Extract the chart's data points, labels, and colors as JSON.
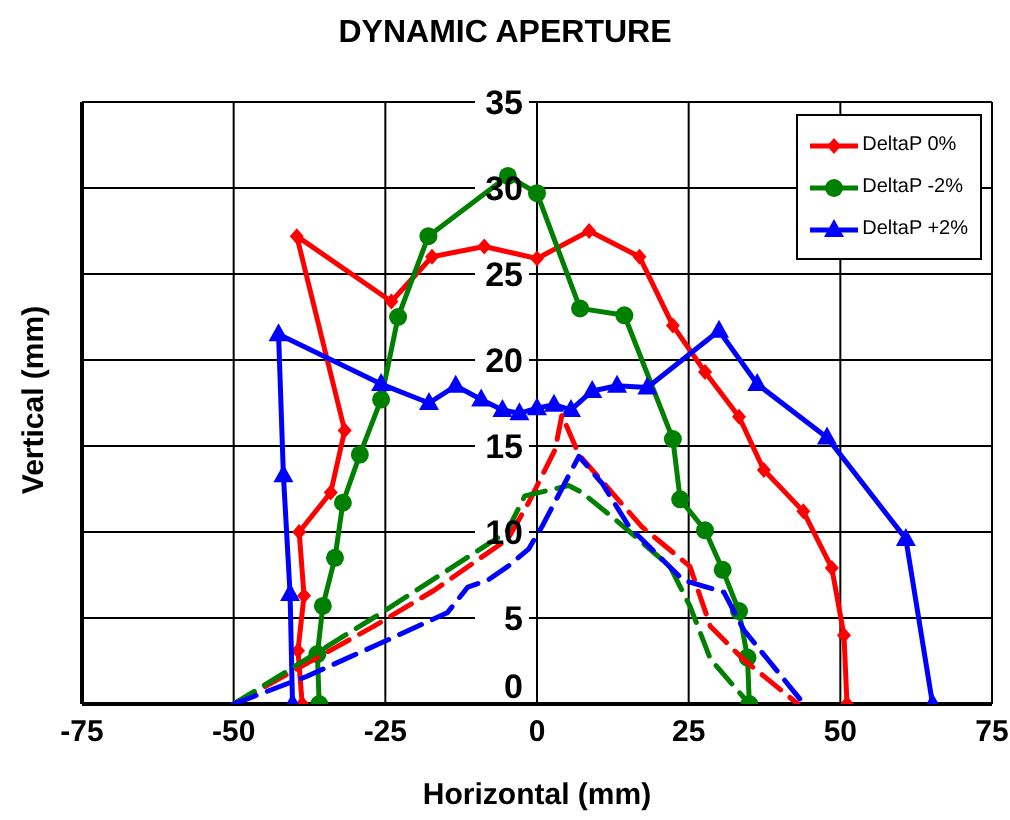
{
  "chart_data": {
    "type": "line",
    "title": "DYNAMIC APERTURE",
    "xlabel": "Horizontal (mm)",
    "ylabel": "Vertical (mm)",
    "xlim": [
      -75,
      75
    ],
    "xticks": [
      -75,
      -50,
      -25,
      0,
      25,
      50,
      75
    ],
    "ylim": [
      0,
      35
    ],
    "yticks": [
      0,
      5,
      10,
      15,
      20,
      25,
      30,
      35
    ],
    "grid": true,
    "legend": "top right",
    "series": [
      {
        "name": "DeltaP 0%",
        "color": "#ff0000",
        "marker": "diamond",
        "line_style": "solid",
        "x": [
          -38.7,
          -39.4,
          -38.4,
          -39.2,
          -34,
          -31.7,
          -39.6,
          -24,
          -17.3,
          -8.7,
          0,
          8.6,
          16.9,
          22.4,
          27.7,
          33.3,
          37.4,
          43.9,
          48.6,
          50.6,
          51.1
        ],
        "values": [
          0,
          3.1,
          6.3,
          10,
          12.3,
          15.9,
          27.2,
          23.4,
          26,
          26.6,
          25.9,
          27.5,
          26,
          22,
          19.3,
          16.7,
          13.6,
          11.2,
          7.9,
          4,
          0
        ]
      },
      {
        "name": "DeltaP -2%",
        "color": "#008000",
        "marker": "circle",
        "line_style": "solid",
        "x": [
          -35.9,
          -36.2,
          -35.3,
          -33.3,
          -32,
          -29.2,
          -25.7,
          -22.9,
          -17.9,
          -4.8,
          0,
          7.1,
          14.4,
          22.4,
          23.6,
          27.7,
          30.6,
          33.3,
          34.7,
          35
        ],
        "values": [
          0,
          2.9,
          5.7,
          8.5,
          11.7,
          14.5,
          17.7,
          22.5,
          27.2,
          30.7,
          29.7,
          23,
          22.6,
          15.4,
          11.9,
          10.1,
          7.8,
          5.4,
          2.7,
          0
        ]
      },
      {
        "name": "DeltaP +2%",
        "color": "#0000ff",
        "marker": "triangle",
        "line_style": "solid",
        "x": [
          -40.3,
          -40.7,
          -41.8,
          -42.6,
          -25.7,
          -17.8,
          -13.4,
          -9.2,
          -5.7,
          -2.9,
          0,
          2.8,
          5.6,
          9.1,
          13.2,
          18.2,
          30,
          36.3,
          47.8,
          60.8,
          65.2
        ],
        "values": [
          0,
          6.4,
          13.3,
          21.5,
          18.6,
          17.5,
          18.5,
          17.7,
          17.1,
          16.9,
          17.2,
          17.4,
          17.1,
          18.2,
          18.5,
          18.4,
          21.7,
          18.6,
          15.5,
          9.6,
          0
        ]
      },
      {
        "color": "#ff0000",
        "marker": "none",
        "line_style": "dashed",
        "x": [
          -50,
          -27,
          -17,
          -4.8,
          -1.4,
          3,
          4.1,
          6.9,
          17.3,
          25.2,
          28.6,
          34,
          43
        ],
        "values": [
          0,
          4.5,
          6.6,
          9.6,
          11.7,
          14.8,
          16.8,
          14.5,
          10.3,
          8,
          4.5,
          2.6,
          0
        ]
      },
      {
        "color": "#008000",
        "marker": "none",
        "line_style": "dashed",
        "x": [
          -50,
          -27,
          -5,
          -2,
          5.2,
          7.4,
          13,
          21.9,
          25.2,
          28.6,
          35
        ],
        "values": [
          0,
          5,
          10,
          12.1,
          12.7,
          12.3,
          10.7,
          8,
          5.7,
          2.6,
          0
        ]
      },
      {
        "color": "#0000ff",
        "marker": "none",
        "line_style": "dashed",
        "x": [
          -50,
          -38,
          -26,
          -14.8,
          -11.4,
          -8.1,
          -4.8,
          -1.4,
          0.8,
          6.9,
          10.8,
          15.2,
          24.1,
          30.8,
          34.1,
          44
        ],
        "values": [
          0,
          1.6,
          3.5,
          5.3,
          6.8,
          7.2,
          8,
          9,
          10.3,
          14.4,
          12.8,
          10.3,
          7.2,
          6.5,
          4.3,
          0
        ]
      }
    ]
  }
}
